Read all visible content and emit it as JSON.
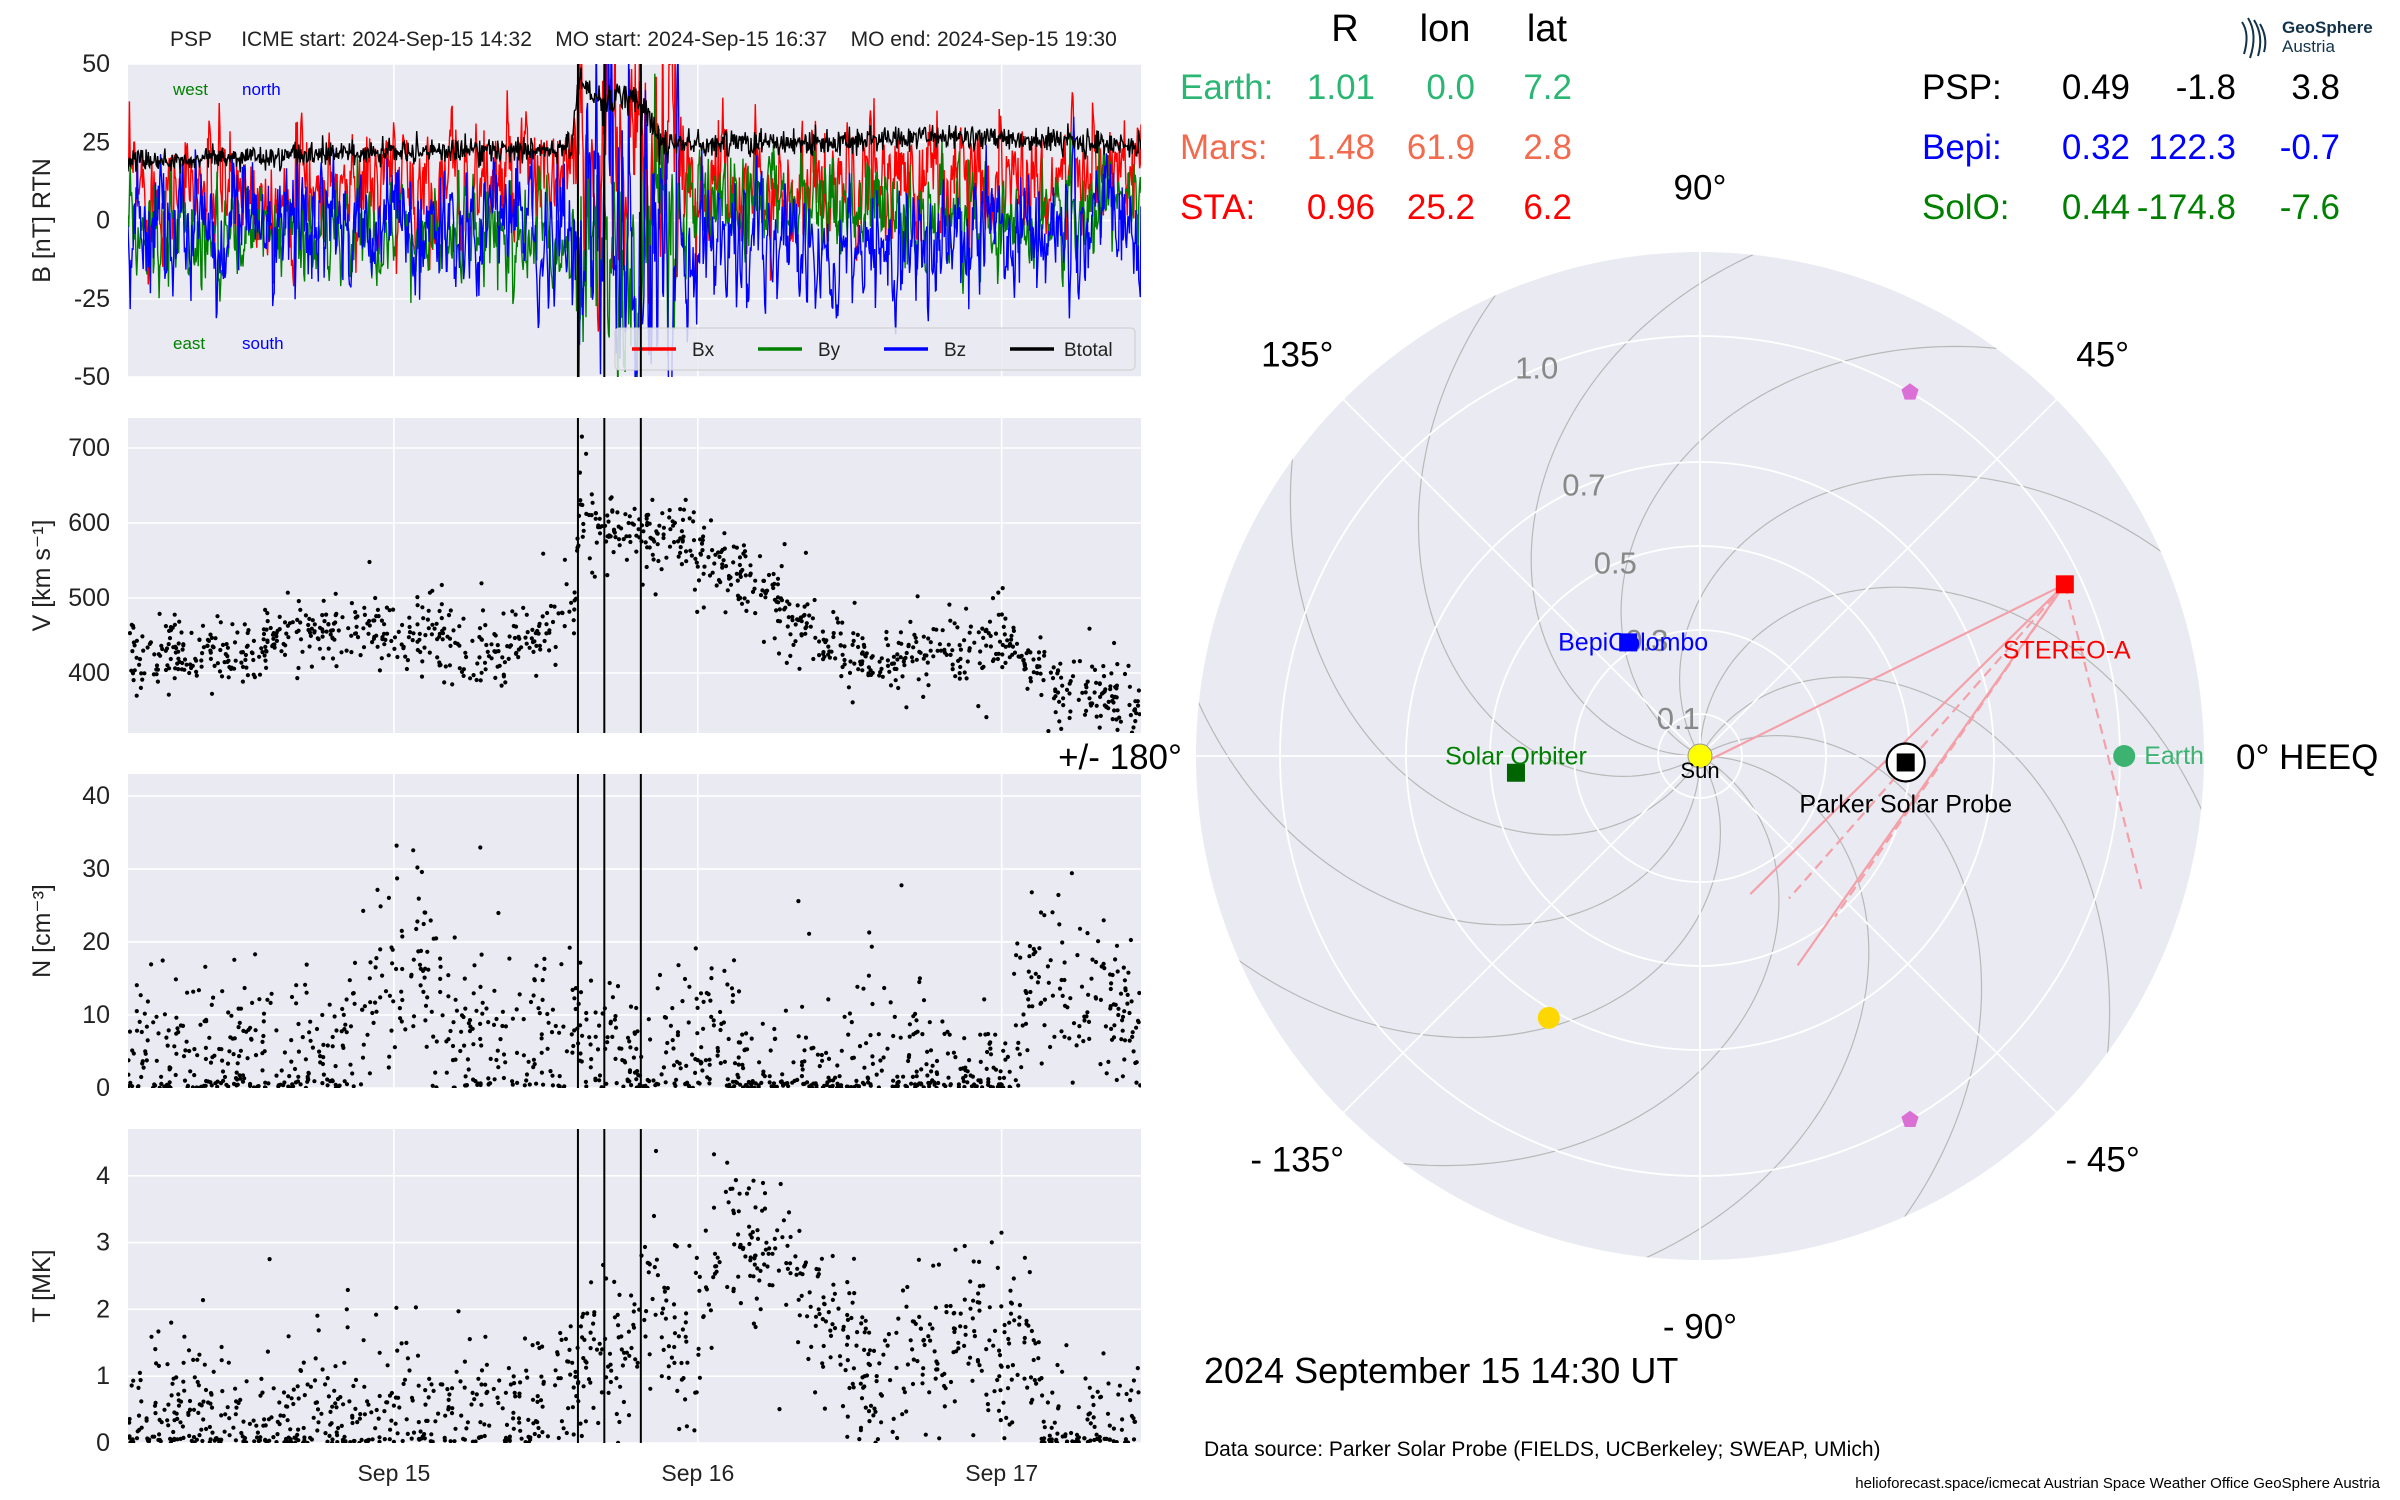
{
  "header": {
    "spacecraft": "PSP",
    "icme_start": "ICME start: 2024-Sep-15 14:32",
    "mo_start": "MO start: 2024-Sep-15 16:37",
    "mo_end": "MO end: 2024-Sep-15 19:30"
  },
  "position_table": {
    "columns": [
      "R",
      "lon",
      "lat"
    ],
    "left_rows": [
      {
        "name": "Earth:",
        "r": "1.01",
        "lon": "0.0",
        "lat": "7.2",
        "color": "#2bb673"
      },
      {
        "name": "Mars:",
        "r": "1.48",
        "lon": "61.9",
        "lat": "2.8",
        "color": "#f26b4f"
      },
      {
        "name": "STA:",
        "r": "0.96",
        "lon": "25.2",
        "lat": "6.2",
        "color": "#ff0000"
      }
    ],
    "right_rows": [
      {
        "name": "PSP:",
        "r": "0.49",
        "lon": "-1.8",
        "lat": "3.8",
        "color": "#000000"
      },
      {
        "name": "Bepi:",
        "r": "0.32",
        "lon": "122.3",
        "lat": "-0.7",
        "color": "#0000ff"
      },
      {
        "name": "SolO:",
        "r": "0.44",
        "lon": "-174.8",
        "lat": "-7.6",
        "color": "#008000"
      }
    ]
  },
  "logo": {
    "line1": "GeoSphere",
    "line2": "Austria"
  },
  "footer": {
    "date": "2024 September 15  14:30 UT",
    "source": "Data source: Parker Solar Probe (FIELDS, UCBerkeley; SWEAP, UMich)",
    "credits": "helioforecast.space/icmecat   Austrian Space Weather Office   GeoSphere Austria"
  },
  "chart_data": [
    {
      "type": "line",
      "panel": "magnetic_field",
      "ylabel": "B [nT] RTN",
      "ylim": [
        -50,
        50
      ],
      "yticks": [
        -50,
        -25,
        0,
        25,
        50
      ],
      "xlim": [
        "2024-09-14 03:00",
        "2024-09-17 11:00"
      ],
      "xticks": [
        "Sep 15",
        "Sep 16",
        "Sep 17"
      ],
      "annotations": {
        "west": "west",
        "north": "north",
        "east": "east",
        "south": "south"
      },
      "legend": {
        "placement": "lower right",
        "entries": [
          "Bx",
          "By",
          "Bz",
          "Btotal"
        ]
      },
      "series": [
        {
          "name": "Bx",
          "color": "#ff0000",
          "segments": [
            [
              "2024-09-14 03:00",
              10
            ],
            [
              "2024-09-15 12:00",
              12
            ],
            [
              "2024-09-15 14:30",
              15
            ],
            [
              "2024-09-15 16:00",
              20
            ],
            [
              "2024-09-15 19:00",
              18
            ],
            [
              "2024-09-16 00:00",
              12
            ],
            [
              "2024-09-16 12:00",
              10
            ],
            [
              "2024-09-16 18:00",
              15
            ],
            [
              "2024-09-17 11:00",
              14
            ]
          ],
          "noise": 14
        },
        {
          "name": "By",
          "color": "#008000",
          "segments": [
            [
              "2024-09-14 03:00",
              -5
            ],
            [
              "2024-09-15 12:00",
              -4
            ],
            [
              "2024-09-15 14:30",
              -10
            ],
            [
              "2024-09-15 16:00",
              -5
            ],
            [
              "2024-09-15 19:00",
              -20
            ],
            [
              "2024-09-16 00:00",
              8
            ],
            [
              "2024-09-16 12:00",
              5
            ],
            [
              "2024-09-16 18:00",
              0
            ],
            [
              "2024-09-17 11:00",
              5
            ]
          ],
          "noise": 12
        },
        {
          "name": "Bz",
          "color": "#0000ff",
          "segments": [
            [
              "2024-09-14 03:00",
              -2
            ],
            [
              "2024-09-15 12:00",
              -2
            ],
            [
              "2024-09-15 14:30",
              -10
            ],
            [
              "2024-09-15 17:00",
              5
            ],
            [
              "2024-09-15 19:00",
              -15
            ],
            [
              "2024-09-16 00:00",
              -5
            ],
            [
              "2024-09-16 12:00",
              -15
            ],
            [
              "2024-09-16 18:00",
              -5
            ],
            [
              "2024-09-17 11:00",
              0
            ]
          ],
          "noise": 14
        },
        {
          "name": "Btotal",
          "color": "#000000",
          "segments": [
            [
              "2024-09-14 03:00",
              19
            ],
            [
              "2024-09-15 00:00",
              22
            ],
            [
              "2024-09-15 14:00",
              23
            ],
            [
              "2024-09-15 14:35",
              45
            ],
            [
              "2024-09-15 16:00",
              40
            ],
            [
              "2024-09-15 17:30",
              38
            ],
            [
              "2024-09-15 19:00",
              40
            ],
            [
              "2024-09-15 21:00",
              25
            ],
            [
              "2024-09-16 06:00",
              24
            ],
            [
              "2024-09-16 18:00",
              27
            ],
            [
              "2024-09-17 11:00",
              24
            ]
          ],
          "noise": 2
        }
      ]
    },
    {
      "type": "scatter",
      "panel": "speed",
      "ylabel": "V [km s⁻¹]",
      "ylim": [
        320,
        740
      ],
      "yticks": [
        400,
        500,
        600,
        700
      ],
      "xlim": [
        "2024-09-14 03:00",
        "2024-09-17 11:00"
      ],
      "xticks": [
        "Sep 15",
        "Sep 16",
        "Sep 17"
      ],
      "profile": [
        [
          "2024-09-14 03:00",
          425
        ],
        [
          "2024-09-14 12:00",
          420
        ],
        [
          "2024-09-14 16:00",
          460
        ],
        [
          "2024-09-15 00:00",
          455
        ],
        [
          "2024-09-15 06:00",
          430
        ],
        [
          "2024-09-15 10:00",
          440
        ],
        [
          "2024-09-15 14:20",
          490
        ],
        [
          "2024-09-15 14:40",
          630
        ],
        [
          "2024-09-15 16:40",
          590
        ],
        [
          "2024-09-15 22:00",
          580
        ],
        [
          "2024-09-16 06:00",
          500
        ],
        [
          "2024-09-16 12:00",
          420
        ],
        [
          "2024-09-16 18:00",
          425
        ],
        [
          "2024-09-17 00:00",
          440
        ],
        [
          "2024-09-17 04:00",
          390
        ],
        [
          "2024-09-17 11:00",
          350
        ]
      ],
      "noise": 25
    },
    {
      "type": "scatter",
      "panel": "density",
      "ylabel": "N [cm⁻³]",
      "ylim": [
        0,
        43
      ],
      "yticks": [
        0,
        10,
        20,
        30,
        40
      ],
      "xlim": [
        "2024-09-14 03:00",
        "2024-09-17 11:00"
      ],
      "xticks": [
        "Sep 15",
        "Sep 16",
        "Sep 17"
      ],
      "profile": [
        [
          "2024-09-14 03:00",
          4
        ],
        [
          "2024-09-14 18:00",
          3
        ],
        [
          "2024-09-14 22:00",
          12
        ],
        [
          "2024-09-15 02:00",
          20
        ],
        [
          "2024-09-15 04:00",
          6
        ],
        [
          "2024-09-15 10:00",
          5
        ],
        [
          "2024-09-15 14:00",
          10
        ],
        [
          "2024-09-15 16:00",
          4
        ],
        [
          "2024-09-15 20:00",
          2
        ],
        [
          "2024-09-16 02:00",
          8
        ],
        [
          "2024-09-16 04:00",
          1
        ],
        [
          "2024-09-16 12:00",
          1
        ],
        [
          "2024-09-16 16:00",
          4
        ],
        [
          "2024-09-17 00:00",
          1
        ],
        [
          "2024-09-17 03:00",
          16
        ],
        [
          "2024-09-17 11:00",
          8
        ]
      ],
      "noise": 6
    },
    {
      "type": "scatter",
      "panel": "temperature",
      "ylabel": "T [MK]",
      "ylim": [
        0,
        4.7
      ],
      "yticks": [
        0,
        1,
        2,
        3,
        4
      ],
      "xlim": [
        "2024-09-14 03:00",
        "2024-09-17 11:00"
      ],
      "xticks": [
        "Sep 15",
        "Sep 16",
        "Sep 17"
      ],
      "profile": [
        [
          "2024-09-14 03:00",
          0.35
        ],
        [
          "2024-09-15 10:00",
          0.4
        ],
        [
          "2024-09-15 14:20",
          0.9
        ],
        [
          "2024-09-15 14:40",
          1.4
        ],
        [
          "2024-09-15 19:00",
          1.2
        ],
        [
          "2024-09-15 20:00",
          2.5
        ],
        [
          "2024-09-15 23:00",
          1.2
        ],
        [
          "2024-09-16 02:00",
          3.0
        ],
        [
          "2024-09-16 06:00",
          2.8
        ],
        [
          "2024-09-16 10:00",
          2.0
        ],
        [
          "2024-09-16 14:00",
          0.8
        ],
        [
          "2024-09-16 18:00",
          1.6
        ],
        [
          "2024-09-17 02:00",
          1.5
        ],
        [
          "2024-09-17 04:00",
          0.3
        ],
        [
          "2024-09-17 11:00",
          0.3
        ]
      ],
      "noise": 0.6
    },
    {
      "type": "polar",
      "title": "",
      "angle_label_suffix_right": "0° HEEQ",
      "angle_labels": [
        {
          "deg": 0,
          "text": "0° HEEQ"
        },
        {
          "deg": 45,
          "text": "45°"
        },
        {
          "deg": 90,
          "text": "90°"
        },
        {
          "deg": 135,
          "text": "135°"
        },
        {
          "deg": 180,
          "text": "+/- 180°"
        },
        {
          "deg": -135,
          "text": "- 135°"
        },
        {
          "deg": -90,
          "text": "- 90°"
        },
        {
          "deg": -45,
          "text": "- 45°"
        }
      ],
      "radial_ticks": [
        "0.1",
        "0.3",
        "0.5",
        "0.7",
        "1.0"
      ],
      "radial_tick_values": [
        0.1,
        0.3,
        0.5,
        0.7,
        1.0
      ],
      "rmax": 1.2,
      "bodies": [
        {
          "name": "Sun",
          "r": 0.0,
          "lon": 0,
          "color": "#ffff00",
          "marker": "circle",
          "label": "Sun",
          "label_color": "#000000"
        },
        {
          "name": "Earth",
          "r": 1.01,
          "lon": 0.0,
          "color": "#3cb371",
          "marker": "circle",
          "label": "Earth",
          "label_color": "#3cb371"
        },
        {
          "name": "STEREO-A",
          "r": 0.96,
          "lon": 25.2,
          "color": "#ff0000",
          "marker": "square",
          "label": "STEREO-A",
          "label_color": "#ff0000"
        },
        {
          "name": "Parker Solar Probe",
          "r": 0.49,
          "lon": -1.8,
          "color": "#000000",
          "marker": "square-ring",
          "label": "Parker Solar Probe",
          "label_color": "#000000"
        },
        {
          "name": "BepiColombo",
          "r": 0.32,
          "lon": 122.3,
          "color": "#0000ff",
          "marker": "square",
          "label": "BepiColombo",
          "label_color": "#0000ff"
        },
        {
          "name": "Solar Orbiter",
          "r": 0.44,
          "lon": -174.8,
          "color": "#006400",
          "marker": "square",
          "label": "Solar Orbiter",
          "label_color": "#008000"
        },
        {
          "name": "Mars",
          "r": 1.48,
          "lon": 61.9,
          "color": "#f26b4f",
          "marker": "none"
        },
        {
          "name": "Venus",
          "r": 0.72,
          "lon": -120.0,
          "color": "#ffd700",
          "marker": "circle"
        },
        {
          "name": "L4",
          "r": 1.0,
          "lon": 60.0,
          "color": "#da70d6",
          "marker": "pentagon"
        },
        {
          "name": "L5",
          "r": 1.0,
          "lon": -60.0,
          "color": "#da70d6",
          "marker": "pentagon"
        }
      ]
    }
  ]
}
